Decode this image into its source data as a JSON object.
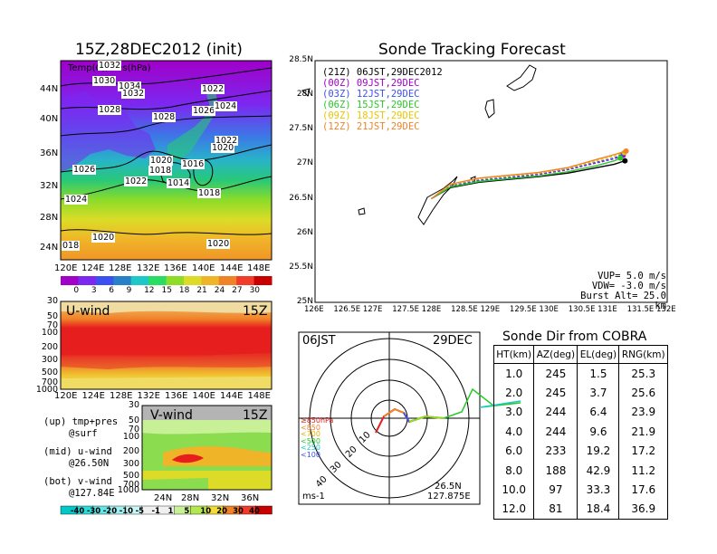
{
  "left_map": {
    "title": "15Z,28DEC2012 (init)",
    "subtitle": "Temp(C),Pres(hPa)",
    "lat_labels": [
      "44N",
      "40N",
      "36N",
      "32N",
      "28N",
      "24N"
    ],
    "lon_labels": [
      "120E",
      "124E",
      "128E",
      "132E",
      "136E",
      "140E",
      "144E",
      "148E"
    ],
    "pressure_labels": [
      "1032",
      "1030",
      "1034",
      "1032",
      "1028",
      "1022",
      "1026",
      "1024",
      "1028",
      "1022",
      "1020",
      "1020",
      "1016",
      "1026",
      "1018",
      "1022",
      "1014",
      "1018",
      "1024",
      "1020",
      "018",
      "1020"
    ],
    "colorbar_labels": [
      "0",
      "3",
      "6",
      "9",
      "12",
      "15",
      "18",
      "21",
      "24",
      "27",
      "30"
    ],
    "colors": [
      "#a000c8",
      "#7c28f0",
      "#3c50f0",
      "#2880c8",
      "#1ec8c8",
      "#28dc64",
      "#8cdc28",
      "#dcdc28",
      "#f0b428",
      "#f08228",
      "#f03c28",
      "#c80000"
    ]
  },
  "u_wind": {
    "label": "U-wind",
    "time": "15Z",
    "levels": [
      "30",
      "50",
      "70",
      "100",
      "200",
      "300",
      "500",
      "700",
      "1000"
    ],
    "lon_labels": [
      "120E",
      "124E",
      "128E",
      "132E",
      "136E",
      "140E",
      "144E",
      "148E"
    ]
  },
  "v_wind": {
    "label": "V-wind",
    "time": "15Z",
    "levels": [
      "30",
      "50",
      "70",
      "100",
      "200",
      "300",
      "500",
      "700",
      "1000"
    ],
    "lat_labels": [
      "24N",
      "28N",
      "32N",
      "36N"
    ],
    "colorbar_labels": [
      "-40",
      "-30",
      "-20",
      "-10",
      "-5",
      "-1",
      "1",
      "5",
      "10",
      "20",
      "30",
      "40"
    ],
    "colors": [
      "#00c8c8",
      "#28dcdc",
      "#64e6e6",
      "#a0f0f0",
      "#c8f5f5",
      "#f0f0f0",
      "#f0f0f0",
      "#c8f096",
      "#b4e650",
      "#f0dc32",
      "#f08228",
      "#f03c28",
      "#c80000"
    ]
  },
  "notes": {
    "up": "(up) tmp+pres",
    "up2": "@surf",
    "mid": "(mid) u-wind",
    "mid2": "@26.50N",
    "bot": "(bot) v-wind",
    "bot2": "@127.84E"
  },
  "track": {
    "title": "Sonde Tracking Forecast",
    "legend": [
      {
        "label": "(21Z)  06JST,29DEC2012",
        "color": "#000000"
      },
      {
        "label": "(00Z)  09JST,29DEC",
        "color": "#a000c8"
      },
      {
        "label": "(03Z)  12JST,29DEC",
        "color": "#3c50f0"
      },
      {
        "label": "(06Z)  15JST,29DEC",
        "color": "#28c828"
      },
      {
        "label": "(09Z)  18JST,29DEC",
        "color": "#e6c800"
      },
      {
        "label": "(12Z)  21JST,29DEC",
        "color": "#f08228"
      }
    ],
    "lat_labels": [
      "28.5N",
      "28N",
      "27.5N",
      "27N",
      "26.5N",
      "26N",
      "25.5N",
      "25N"
    ],
    "lon_labels": [
      "126E",
      "126.5E",
      "127E",
      "127.5E",
      "128E",
      "128.5E",
      "129E",
      "129.5E",
      "130E",
      "130.5E",
      "131E",
      "131.5E",
      "132E"
    ],
    "vup": "VUP=  5.0  m/s",
    "vdw": "VDW= -3.0  m/s",
    "burst": "Burst Alt= 25.0  km"
  },
  "polar": {
    "time": "06JST",
    "date": "29DEC",
    "legend": [
      "≥850hPa",
      "<850",
      "<700",
      "<500",
      "<250",
      "<100"
    ],
    "ring_labels": [
      "10",
      "20",
      "30",
      "40"
    ],
    "units": "ms-1",
    "lat": "26.5N",
    "lon": "127.875E"
  },
  "sonde_table": {
    "title": "Sonde Dir from COBRA",
    "headers": [
      "HT(km)",
      "AZ(deg)",
      "EL(deg)",
      "RNG(km)"
    ],
    "rows": [
      [
        "1.0",
        "245",
        "1.5",
        "25.3"
      ],
      [
        "2.0",
        "245",
        "3.7",
        "25.6"
      ],
      [
        "3.0",
        "244",
        "6.4",
        "23.9"
      ],
      [
        "4.0",
        "244",
        "9.6",
        "21.9"
      ],
      [
        "6.0",
        "233",
        "19.2",
        "17.2"
      ],
      [
        "8.0",
        "188",
        "42.9",
        "11.2"
      ],
      [
        "10.0",
        "97",
        "33.3",
        "17.6"
      ],
      [
        "12.0",
        "81",
        "18.4",
        "36.9"
      ]
    ]
  },
  "chart_data": [
    {
      "type": "line",
      "title": "Sonde Tracking Forecast",
      "xlim": [
        126,
        132
      ],
      "ylim": [
        25,
        28.5
      ],
      "series": [
        {
          "name": "(21Z) 06JST,29DEC2012",
          "x": [
            127.98,
            128.3,
            128.8,
            129.3,
            129.8,
            130.3,
            130.8,
            131.1,
            131.28
          ],
          "y": [
            26.5,
            26.66,
            26.74,
            26.78,
            26.82,
            26.87,
            26.95,
            27.0,
            27.05
          ]
        },
        {
          "name": "(00Z) 09JST,29DEC",
          "x": [
            127.98,
            128.3,
            128.8,
            129.3,
            129.8,
            130.3,
            130.8,
            131.1,
            131.25
          ],
          "y": [
            26.5,
            26.68,
            26.76,
            26.8,
            26.85,
            26.92,
            27.02,
            27.08,
            27.13
          ]
        },
        {
          "name": "(03Z) 12JST,29DEC",
          "x": [
            127.98,
            128.3,
            128.8,
            129.3,
            129.8,
            130.3,
            130.8,
            131.1,
            131.22
          ],
          "y": [
            26.5,
            26.69,
            26.77,
            26.81,
            26.86,
            26.93,
            27.03,
            27.09,
            27.14
          ]
        },
        {
          "name": "(06Z) 15JST,29DEC",
          "x": [
            127.98,
            128.3,
            128.8,
            129.3,
            129.8,
            130.3,
            130.8,
            131.1,
            131.2
          ],
          "y": [
            26.5,
            26.67,
            26.75,
            26.79,
            26.83,
            26.89,
            26.98,
            27.05,
            27.09
          ]
        },
        {
          "name": "(09Z) 18JST,29DEC",
          "x": [
            127.98,
            128.3,
            128.8,
            129.3,
            129.8,
            130.3,
            130.8,
            131.1,
            131.27
          ],
          "y": [
            26.5,
            26.7,
            26.79,
            26.83,
            26.87,
            26.94,
            27.05,
            27.12,
            27.17
          ]
        },
        {
          "name": "(12Z) 21JST,29DEC",
          "x": [
            127.98,
            128.3,
            128.8,
            129.3,
            129.8,
            130.3,
            130.8,
            131.1,
            131.3
          ],
          "y": [
            26.5,
            26.71,
            26.8,
            26.84,
            26.88,
            26.95,
            27.07,
            27.14,
            27.19
          ]
        }
      ]
    },
    {
      "type": "table",
      "title": "Sonde Dir from COBRA",
      "columns": [
        "HT(km)",
        "AZ(deg)",
        "EL(deg)",
        "RNG(km)"
      ],
      "rows": [
        [
          1.0,
          245,
          1.5,
          25.3
        ],
        [
          2.0,
          245,
          3.7,
          25.6
        ],
        [
          3.0,
          244,
          6.4,
          23.9
        ],
        [
          4.0,
          244,
          9.6,
          21.9
        ],
        [
          6.0,
          233,
          19.2,
          17.2
        ],
        [
          8.0,
          188,
          42.9,
          11.2
        ],
        [
          10.0,
          97,
          33.3,
          17.6
        ],
        [
          12.0,
          81,
          18.4,
          36.9
        ]
      ]
    }
  ]
}
